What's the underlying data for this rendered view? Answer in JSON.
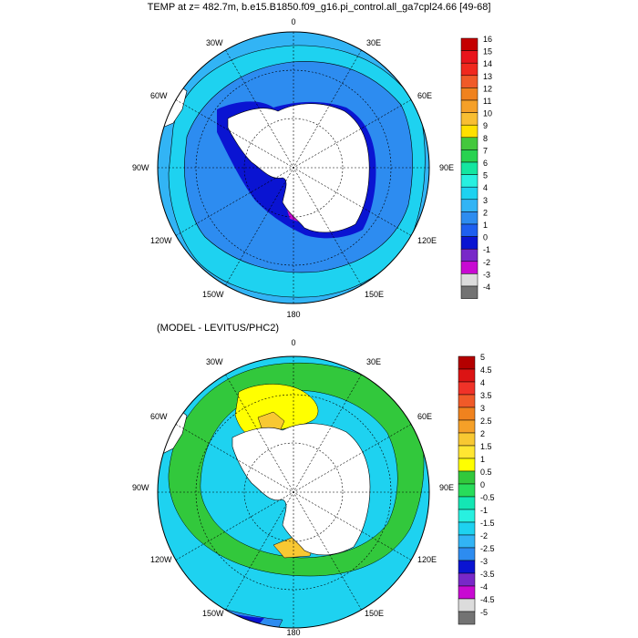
{
  "top_panel": {
    "title": "TEMP at z= 482.7m, b.e15.B1850.f09_g16.pi_control.all_ga7cpl24.66 [49-68]",
    "longitude_labels": [
      "0",
      "30E",
      "60E",
      "90E",
      "120E",
      "150E",
      "180",
      "150W",
      "120W",
      "90W",
      "60W",
      "30W"
    ],
    "colorbar": {
      "labels": [
        "16",
        "15",
        "14",
        "13",
        "12",
        "11",
        "10",
        "9",
        "8",
        "7",
        "6",
        "5",
        "4",
        "3",
        "2",
        "1",
        "0",
        "-1",
        "-2",
        "-3",
        "-4"
      ],
      "colors": [
        "#c40000",
        "#e8141c",
        "#f0281e",
        "#f05a28",
        "#f0821e",
        "#f5a028",
        "#f8be32",
        "#ffe000",
        "#44c83c",
        "#28d250",
        "#14e6a0",
        "#28f0e0",
        "#1ed2f0",
        "#32b4f5",
        "#2d8cf0",
        "#1e5ff0",
        "#0a14d2",
        "#7828c8",
        "#c80ad2",
        "#dcdcdc",
        "#737373"
      ]
    },
    "map_colors": {
      "ocean_outer": "#32b4f5",
      "ocean_mid": "#1ed2f0",
      "ocean_inner": "#2d8cf0",
      "coast_band": "#0a14d2",
      "cold_patch": "#c80ad2",
      "land": "#ffffff"
    }
  },
  "bottom_panel": {
    "title": "(MODEL - LEVITUS/PHC2)",
    "longitude_labels": [
      "0",
      "30E",
      "60E",
      "90E",
      "120E",
      "150E",
      "180",
      "150W",
      "120W",
      "90W",
      "60W",
      "30W"
    ],
    "colorbar": {
      "labels": [
        "5",
        "4.5",
        "4",
        "3.5",
        "3",
        "2.5",
        "2",
        "1.5",
        "1",
        "0.5",
        "0",
        "-0.5",
        "-1",
        "-1.5",
        "-2",
        "-2.5",
        "-3",
        "-3.5",
        "-4",
        "-4.5",
        "-5"
      ],
      "colors": [
        "#b40000",
        "#dc1414",
        "#f03228",
        "#f05a28",
        "#f0821e",
        "#f5a028",
        "#f8c832",
        "#ffe632",
        "#ffff00",
        "#32c83c",
        "#28dc5a",
        "#14e6b4",
        "#28f0e0",
        "#1ed2f0",
        "#32b4f5",
        "#2d8cf0",
        "#0a14d2",
        "#7828c8",
        "#c80ad2",
        "#dcdcdc",
        "#737373"
      ]
    },
    "map_colors": {
      "base": "#1ed2f0",
      "green_band": "#32c83c",
      "light_green": "#28dc5a",
      "yellow": "#ffff00",
      "orange": "#f8c832",
      "dark_blue": "#2d8cf0",
      "land": "#ffffff"
    }
  }
}
